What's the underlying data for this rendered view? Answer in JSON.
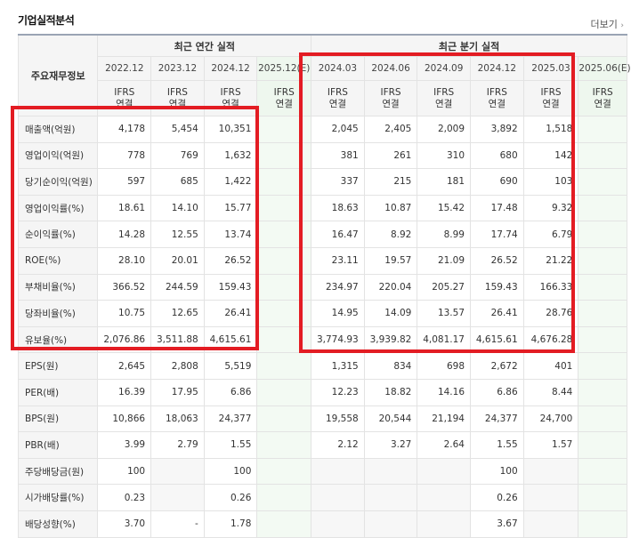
{
  "section_title": "기업실적분석",
  "more_link": "더보기",
  "table": {
    "row_header_label": "주요재무정보",
    "annual_group": "최근 연간 실적",
    "quarter_group": "최근 분기 실적",
    "annual_periods": [
      "2022.12",
      "2023.12",
      "2024.12",
      "2025.12(E)"
    ],
    "quarter_periods": [
      "2024.03",
      "2024.06",
      "2024.09",
      "2024.12",
      "2025.03",
      "2025.06(E)"
    ],
    "basis_line1": "IFRS",
    "basis_line2": "연결",
    "rows": [
      {
        "label": "매출액(억원)",
        "annual": [
          "4,178",
          "5,454",
          "10,351",
          ""
        ],
        "quarter": [
          "2,045",
          "2,405",
          "2,009",
          "3,892",
          "1,518",
          ""
        ]
      },
      {
        "label": "영업이익(억원)",
        "annual": [
          "778",
          "769",
          "1,632",
          ""
        ],
        "quarter": [
          "381",
          "261",
          "310",
          "680",
          "142",
          ""
        ]
      },
      {
        "label": "당기순이익(억원)",
        "annual": [
          "597",
          "685",
          "1,422",
          ""
        ],
        "quarter": [
          "337",
          "215",
          "181",
          "690",
          "103",
          ""
        ]
      },
      {
        "label": "영업이익률(%)",
        "annual": [
          "18.61",
          "14.10",
          "15.77",
          ""
        ],
        "quarter": [
          "18.63",
          "10.87",
          "15.42",
          "17.48",
          "9.32",
          ""
        ]
      },
      {
        "label": "순이익률(%)",
        "annual": [
          "14.28",
          "12.55",
          "13.74",
          ""
        ],
        "quarter": [
          "16.47",
          "8.92",
          "8.99",
          "17.74",
          "6.79",
          ""
        ]
      },
      {
        "label": "ROE(%)",
        "annual": [
          "28.10",
          "20.01",
          "26.52",
          ""
        ],
        "quarter": [
          "23.11",
          "19.57",
          "21.09",
          "26.52",
          "21.22",
          ""
        ]
      },
      {
        "label": "부채비율(%)",
        "annual": [
          "366.52",
          "244.59",
          "159.43",
          ""
        ],
        "quarter": [
          "234.97",
          "220.04",
          "205.27",
          "159.43",
          "166.33",
          ""
        ]
      },
      {
        "label": "당좌비율(%)",
        "annual": [
          "10.75",
          "12.65",
          "26.41",
          ""
        ],
        "quarter": [
          "14.95",
          "14.09",
          "13.57",
          "26.41",
          "28.76",
          ""
        ]
      },
      {
        "label": "유보율(%)",
        "annual": [
          "2,076.86",
          "3,511.88",
          "4,615.61",
          ""
        ],
        "quarter": [
          "3,774.93",
          "3,939.82",
          "4,081.17",
          "4,615.61",
          "4,676.28",
          ""
        ]
      },
      {
        "label": "EPS(원)",
        "annual": [
          "2,645",
          "2,808",
          "5,519",
          ""
        ],
        "quarter": [
          "1,315",
          "834",
          "698",
          "2,672",
          "401",
          ""
        ]
      },
      {
        "label": "PER(배)",
        "annual": [
          "16.39",
          "17.95",
          "6.86",
          ""
        ],
        "quarter": [
          "12.23",
          "18.82",
          "14.16",
          "6.86",
          "8.44",
          ""
        ]
      },
      {
        "label": "BPS(원)",
        "annual": [
          "10,866",
          "18,063",
          "24,377",
          ""
        ],
        "quarter": [
          "19,558",
          "20,544",
          "21,194",
          "24,377",
          "24,700",
          ""
        ]
      },
      {
        "label": "PBR(배)",
        "annual": [
          "3.99",
          "2.79",
          "1.55",
          ""
        ],
        "quarter": [
          "2.12",
          "3.27",
          "2.64",
          "1.55",
          "1.57",
          ""
        ]
      },
      {
        "label": "주당배당금(원)",
        "annual": [
          "100",
          "",
          "100",
          ""
        ],
        "quarter": [
          "",
          "",
          "",
          "100",
          "",
          ""
        ]
      },
      {
        "label": "시가배당률(%)",
        "annual": [
          "0.23",
          "",
          "0.26",
          ""
        ],
        "quarter": [
          "",
          "",
          "",
          "0.26",
          "",
          ""
        ]
      },
      {
        "label": "배당성향(%)",
        "annual": [
          "3.70",
          "-",
          "1.78",
          ""
        ],
        "quarter": [
          "",
          "",
          "",
          "3.67",
          "",
          ""
        ]
      }
    ]
  },
  "colors": {
    "highlight": "#e31c23",
    "ifrs_text": "#e0542c",
    "estimate_bg": "#eef7ee",
    "header_bg": "#f5f5f5"
  }
}
